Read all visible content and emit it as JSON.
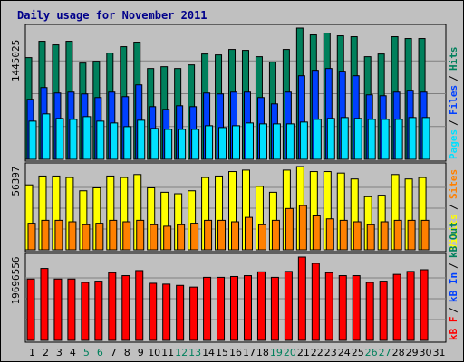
{
  "title": "Daily usage for November 2011",
  "colors": {
    "background": "#c0c0c0",
    "panel": "#c0c0c0",
    "hits": "#00805c",
    "files": "#0040ff",
    "pages": "#00e0ff",
    "visits": "#ffff00",
    "sites": "#ff8000",
    "kbytes": "#ff0000",
    "title": "#00008b",
    "weekday": "#000000",
    "weekend": "#00805c"
  },
  "panels": {
    "top": {
      "max_label": "1445025",
      "legend": [
        "Pages",
        "Files",
        "Hits"
      ]
    },
    "middle": {
      "max_label": "56397",
      "legend": [
        "Visits",
        "Sites"
      ]
    },
    "bottom": {
      "max_label": "19696556",
      "legend": [
        "kB F",
        "kB In",
        "kB Out"
      ]
    }
  },
  "chart_data": {
    "type": "bar",
    "title": "Daily usage for November 2011",
    "categories": [
      "1",
      "2",
      "3",
      "4",
      "5",
      "6",
      "7",
      "8",
      "9",
      "10",
      "11",
      "12",
      "13",
      "14",
      "15",
      "16",
      "17",
      "18",
      "19",
      "20",
      "21",
      "22",
      "23",
      "24",
      "25",
      "26",
      "27",
      "28",
      "29",
      "30",
      "31"
    ],
    "weekend_days": [
      "5",
      "6",
      "12",
      "13",
      "19",
      "20",
      "26",
      "27"
    ],
    "series": [
      {
        "name": "Hits",
        "panel": "top",
        "values": [
          1120000,
          1300000,
          1260000,
          1300000,
          1060000,
          1080000,
          1170000,
          1240000,
          1290000,
          1000000,
          1020000,
          1000000,
          1040000,
          1160000,
          1150000,
          1210000,
          1200000,
          1130000,
          1070000,
          1210000,
          1445000,
          1370000,
          1390000,
          1360000,
          1350000,
          1130000,
          1160000,
          1350000,
          1330000,
          1330000,
          0
        ]
      },
      {
        "name": "Files",
        "panel": "top",
        "values": [
          660000,
          790000,
          730000,
          740000,
          720000,
          680000,
          740000,
          690000,
          820000,
          580000,
          550000,
          590000,
          580000,
          730000,
          720000,
          740000,
          740000,
          680000,
          610000,
          740000,
          920000,
          980000,
          1000000,
          970000,
          920000,
          710000,
          700000,
          740000,
          760000,
          740000,
          0
        ]
      },
      {
        "name": "Pages",
        "panel": "top",
        "values": [
          420000,
          500000,
          450000,
          440000,
          470000,
          420000,
          400000,
          360000,
          430000,
          340000,
          330000,
          330000,
          330000,
          370000,
          350000,
          370000,
          400000,
          390000,
          390000,
          390000,
          410000,
          440000,
          450000,
          460000,
          450000,
          440000,
          440000,
          440000,
          460000,
          460000,
          0
        ]
      },
      {
        "name": "Visits",
        "panel": "middle",
        "values": [
          44000,
          50000,
          50000,
          49000,
          40000,
          42000,
          50000,
          49000,
          51000,
          42000,
          39000,
          38000,
          40000,
          49000,
          50000,
          53000,
          54000,
          43000,
          39000,
          54000,
          56397,
          53000,
          53000,
          52000,
          48000,
          36000,
          37000,
          51000,
          48000,
          49000,
          0
        ]
      },
      {
        "name": "Sites",
        "panel": "middle",
        "values": [
          18000,
          20000,
          20000,
          19000,
          17000,
          18000,
          20000,
          19000,
          20000,
          17000,
          16000,
          17000,
          18000,
          20000,
          20000,
          19000,
          22000,
          17000,
          20000,
          28000,
          30000,
          23000,
          21000,
          20000,
          19000,
          17000,
          19000,
          20000,
          20000,
          20000,
          0
        ]
      },
      {
        "name": "kB F",
        "panel": "bottom",
        "values": [
          14500000,
          17000000,
          14500000,
          14500000,
          13700000,
          14000000,
          16000000,
          15300000,
          16500000,
          13500000,
          13300000,
          13000000,
          12600000,
          14900000,
          14900000,
          15100000,
          15300000,
          16200000,
          14900000,
          16300000,
          19696556,
          18200000,
          16000000,
          15300000,
          15300000,
          13700000,
          14000000,
          15600000,
          16300000,
          16700000,
          0
        ]
      }
    ],
    "ylabel_max": {
      "top": "1445025",
      "middle": "56397",
      "bottom": "19696556"
    }
  }
}
